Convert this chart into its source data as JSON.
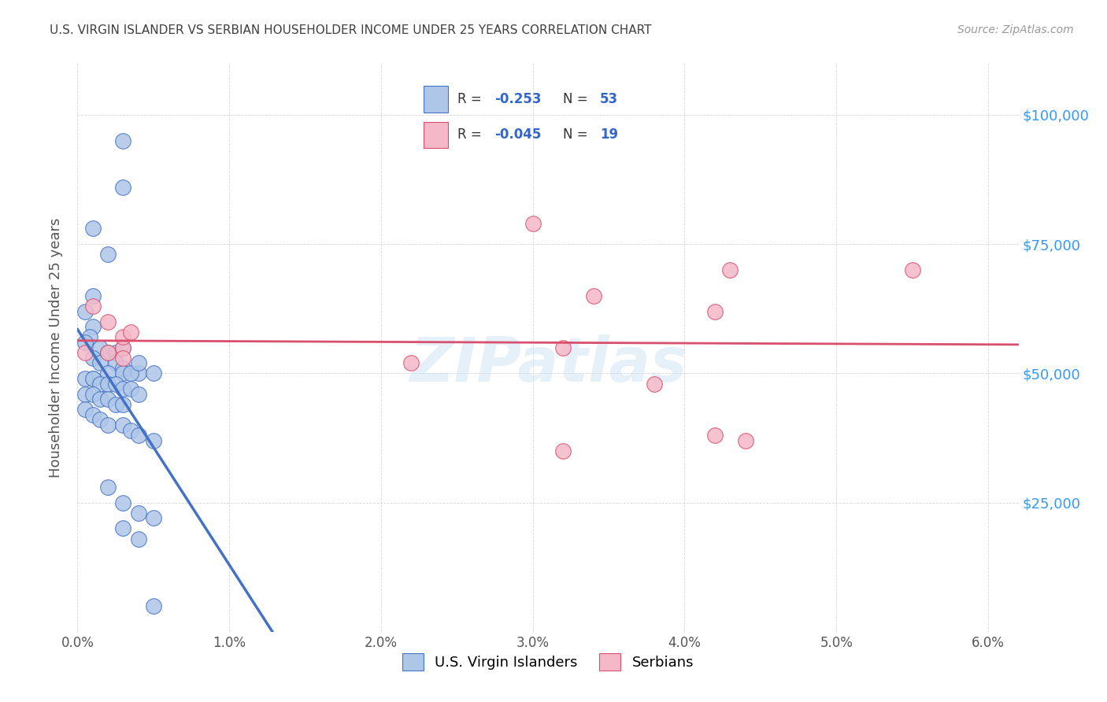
{
  "title": "U.S. VIRGIN ISLANDER VS SERBIAN HOUSEHOLDER INCOME UNDER 25 YEARS CORRELATION CHART",
  "source": "Source: ZipAtlas.com",
  "ylabel": "Householder Income Under 25 years",
  "xlim": [
    0.0,
    0.062
  ],
  "ylim": [
    0,
    110000
  ],
  "yticks": [
    0,
    25000,
    50000,
    75000,
    100000
  ],
  "ytick_labels": [
    "",
    "$25,000",
    "$50,000",
    "$75,000",
    "$100,000"
  ],
  "xticks": [
    0.0,
    0.01,
    0.02,
    0.03,
    0.04,
    0.05,
    0.06
  ],
  "xtick_labels": [
    "0.0%",
    "1.0%",
    "2.0%",
    "3.0%",
    "4.0%",
    "5.0%",
    "6.0%"
  ],
  "legend_label1": "U.S. Virgin Islanders",
  "legend_label2": "Serbians",
  "R1": -0.253,
  "N1": 53,
  "R2": -0.045,
  "N2": 19,
  "color1": "#aec6e8",
  "color2": "#f5b8c8",
  "line1_color": "#4472c4",
  "line2_color": "#d94f6e",
  "title_color": "#404040",
  "ytick_color": "#3399ff",
  "watermark": "ZIPatlas",
  "vi_x": [
    0.003,
    0.003,
    0.001,
    0.002,
    0.001,
    0.0005,
    0.001,
    0.0008,
    0.0005,
    0.0015,
    0.002,
    0.0025,
    0.001,
    0.0015,
    0.0025,
    0.003,
    0.004,
    0.005,
    0.002,
    0.003,
    0.0035,
    0.001,
    0.0005,
    0.001,
    0.0015,
    0.002,
    0.0025,
    0.003,
    0.0035,
    0.004,
    0.0005,
    0.001,
    0.0015,
    0.002,
    0.0025,
    0.003,
    0.0005,
    0.001,
    0.0015,
    0.002,
    0.003,
    0.0035,
    0.004,
    0.005,
    0.002,
    0.003,
    0.004,
    0.005,
    0.003,
    0.004,
    0.003,
    0.004,
    0.005
  ],
  "vi_y": [
    95000,
    86000,
    78000,
    73000,
    65000,
    62000,
    59000,
    57000,
    56000,
    55000,
    54000,
    54000,
    53000,
    52000,
    52000,
    51000,
    50000,
    50000,
    50000,
    50000,
    50000,
    49000,
    49000,
    49000,
    48000,
    48000,
    48000,
    47000,
    47000,
    46000,
    46000,
    46000,
    45000,
    45000,
    44000,
    44000,
    43000,
    42000,
    41000,
    40000,
    40000,
    39000,
    38000,
    37000,
    28000,
    25000,
    23000,
    22000,
    20000,
    18000,
    55000,
    52000,
    5000
  ],
  "sr_x": [
    0.0005,
    0.001,
    0.002,
    0.003,
    0.002,
    0.003,
    0.003,
    0.0035,
    0.03,
    0.022,
    0.032,
    0.034,
    0.038,
    0.042,
    0.042,
    0.044,
    0.032,
    0.043,
    0.055
  ],
  "sr_y": [
    54000,
    63000,
    60000,
    55000,
    54000,
    53000,
    57000,
    58000,
    79000,
    52000,
    55000,
    65000,
    48000,
    62000,
    38000,
    37000,
    35000,
    70000,
    70000
  ],
  "line1_x0": 0.0,
  "line1_x1": 0.03,
  "line1_dash_x0": 0.03,
  "line1_dash_x1": 0.062,
  "line2_x0": 0.0,
  "line2_x1": 0.062
}
